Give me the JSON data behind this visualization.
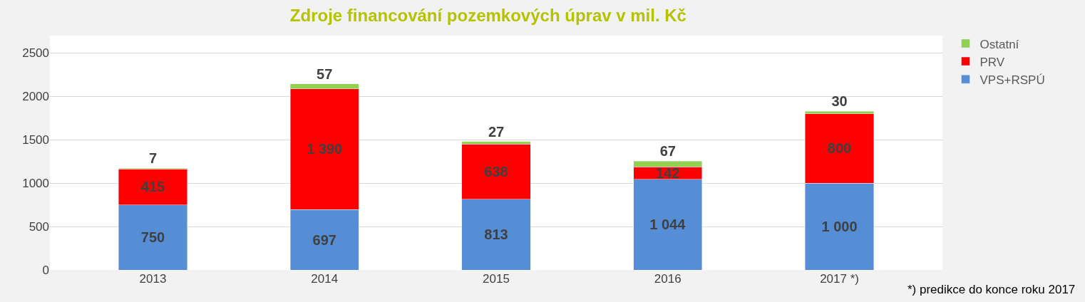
{
  "chart_data": {
    "type": "bar",
    "stacked": true,
    "title": "Zdroje financování pozemkových úprav v mil. Kč",
    "categories": [
      "2013",
      "2014",
      "2015",
      "2016",
      "2017 *)"
    ],
    "series": [
      {
        "name": "VPS+RSPÚ",
        "color": "#558ed5",
        "values": [
          750,
          697,
          813,
          1044,
          1000
        ],
        "value_labels": [
          "750",
          "697",
          "813",
          "1 044",
          "1 000"
        ]
      },
      {
        "name": "PRV",
        "color": "#ff0000",
        "values": [
          415,
          1390,
          638,
          142,
          800
        ],
        "value_labels": [
          "415",
          "1 390",
          "638",
          "142",
          "800"
        ]
      },
      {
        "name": "Ostatní",
        "color": "#92d050",
        "values": [
          7,
          57,
          27,
          67,
          30
        ],
        "value_labels": [
          "7",
          "57",
          "27",
          "67",
          "30"
        ]
      }
    ],
    "ylim": [
      0,
      2700
    ],
    "yticks": [
      0,
      500,
      1000,
      1500,
      2000,
      2500
    ],
    "grid": "y",
    "legend": "top right",
    "annotations": [
      "*) predikce do konce roku 2017"
    ]
  }
}
